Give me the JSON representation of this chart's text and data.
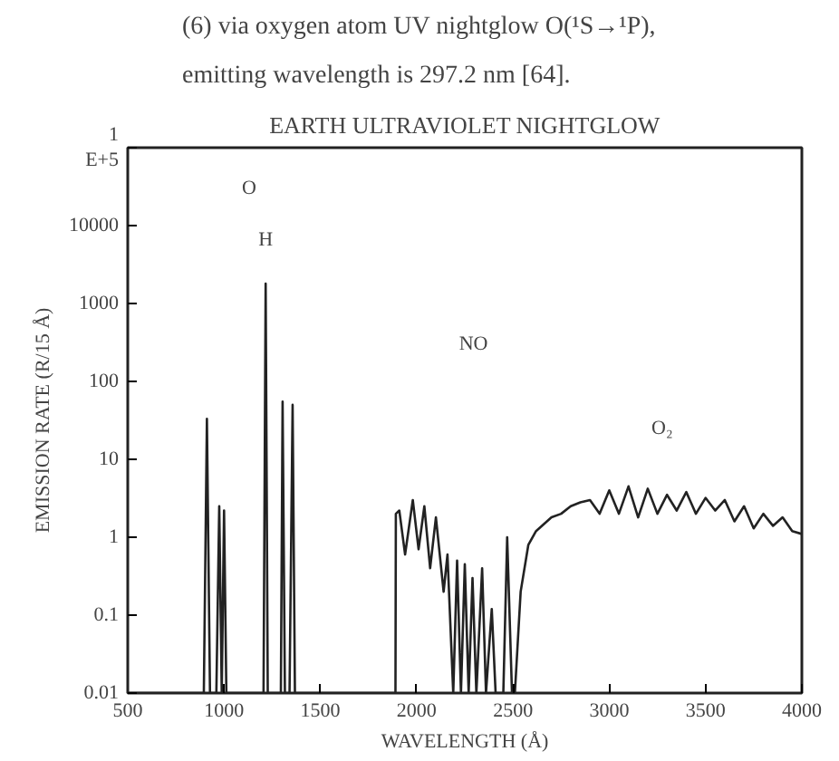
{
  "chart_data": {
    "type": "line",
    "title": "EARTH ULTRAVIOLET NIGHTGLOW",
    "xlabel": "WAVELENGTH (Å)",
    "ylabel": "EMISSION RATE (R/15 Å)",
    "annotations": [
      "(6) via oxygen atom UV nightglow O(¹S→¹P),",
      "emitting wavelength is 297.2 nm [64].",
      "O",
      "H",
      "NO",
      "O₂"
    ],
    "log": "y",
    "grid": false,
    "marker": "none",
    "line_style": "solid",
    "xlim": [
      500,
      4000
    ],
    "ylim": [
      0.01,
      100000
    ],
    "xticks": [
      500,
      1000,
      1500,
      2000,
      2500,
      3000,
      3500,
      4000
    ],
    "yticks": [
      0.01,
      0.1,
      1,
      10,
      100,
      1000,
      10000,
      {
        "value": 100000,
        "label": "1\nE+5"
      }
    ],
    "series": [
      {
        "color": "#222222",
        "x": [
          500,
          880,
          895,
          911,
          927,
          945,
          960,
          975,
          988,
          1000,
          1012,
          1025,
          1190,
          1205,
          1216,
          1227,
          1240,
          1285,
          1295,
          1304,
          1316,
          1326,
          1340,
          1356,
          1368,
          1380,
          1890,
          1892,
          1910,
          1940,
          1980,
          2010,
          2040,
          2070,
          2100,
          2140,
          2160,
          2190,
          2210,
          2230,
          2250,
          2270,
          2290,
          2310,
          2340,
          2360,
          2390,
          2410,
          2450,
          2470,
          2495,
          2510,
          2540,
          2580,
          2620,
          2700,
          2750,
          2800,
          2850,
          2900,
          2950,
          3000,
          3050,
          3100,
          3150,
          3200,
          3250,
          3300,
          3350,
          3400,
          3450,
          3500,
          3550,
          3600,
          3650,
          3700,
          3750,
          3800,
          3850,
          3900,
          3950,
          4000
        ],
        "values": [
          0.01,
          0.01,
          0.01,
          33,
          0.01,
          0.01,
          0.01,
          2.5,
          0.01,
          2.2,
          0.01,
          0.01,
          0.01,
          0.01,
          1800,
          0.01,
          0.01,
          0.01,
          0.01,
          55,
          0.01,
          0.01,
          0.01,
          50,
          0.01,
          0.01,
          0.01,
          2.0,
          2.2,
          0.6,
          3.0,
          0.7,
          2.5,
          0.4,
          1.8,
          0.2,
          0.6,
          0.01,
          0.5,
          0.01,
          0.45,
          0.01,
          0.3,
          0.01,
          0.4,
          0.01,
          0.12,
          0.01,
          0.01,
          1.0,
          0.01,
          0.01,
          0.2,
          0.8,
          1.2,
          1.8,
          2.0,
          2.5,
          2.8,
          3.0,
          2.0,
          4.0,
          2.0,
          4.5,
          1.8,
          4.2,
          2.0,
          3.5,
          2.2,
          3.8,
          2.0,
          3.2,
          2.2,
          3.0,
          1.6,
          2.5,
          1.3,
          2.0,
          1.4,
          1.8,
          1.2,
          1.1
        ]
      }
    ]
  }
}
